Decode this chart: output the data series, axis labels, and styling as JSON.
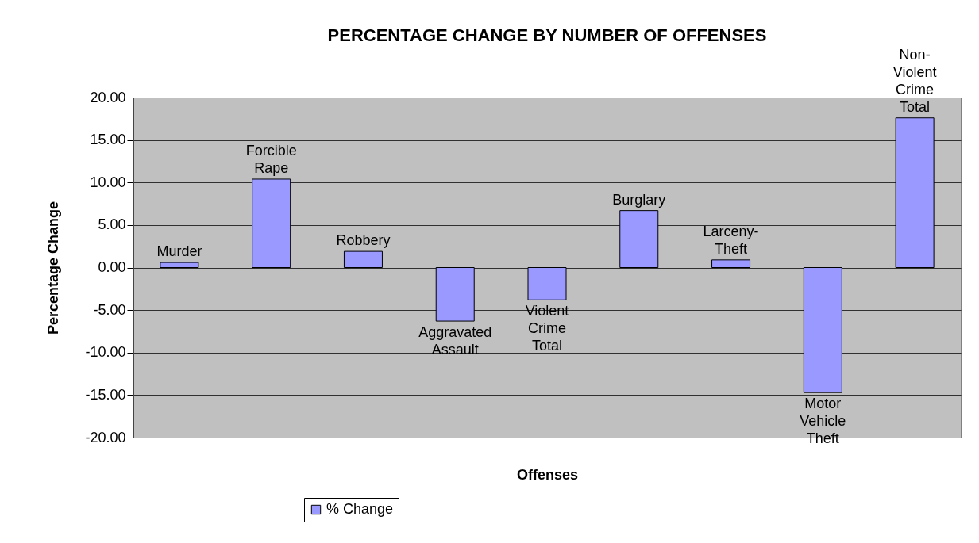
{
  "chart_data": {
    "type": "bar",
    "title": "PERCENTAGE CHANGE BY NUMBER OF OFFENSES",
    "xlabel": "Offenses",
    "ylabel": "Percentage Change",
    "categories": [
      "Murder",
      "Forcible Rape",
      "Robbery",
      "Aggravated Assault",
      "Violent Crime Total",
      "Burglary",
      "Larceny-Theft",
      "Motor Vehicle Theft",
      "Non-Violent Crime Total"
    ],
    "series": [
      {
        "name": "% Change",
        "color": "#9999ff",
        "values": [
          0.6,
          10.4,
          1.9,
          -6.3,
          -3.8,
          6.7,
          0.9,
          -14.7,
          17.6
        ]
      }
    ],
    "ylim": [
      -20,
      20
    ],
    "yticks": [
      {
        "value": -20,
        "label": "-20.00"
      },
      {
        "value": -15,
        "label": "-15.00"
      },
      {
        "value": -10,
        "label": "-10.00"
      },
      {
        "value": -5,
        "label": "-5.00"
      },
      {
        "value": 0,
        "label": "0.00"
      },
      {
        "value": 5,
        "label": "5.00"
      },
      {
        "value": 10,
        "label": "10.00"
      },
      {
        "value": 15,
        "label": "15.00"
      },
      {
        "value": 20,
        "label": "20.00"
      }
    ],
    "grid": "y",
    "legend": "bottom"
  }
}
